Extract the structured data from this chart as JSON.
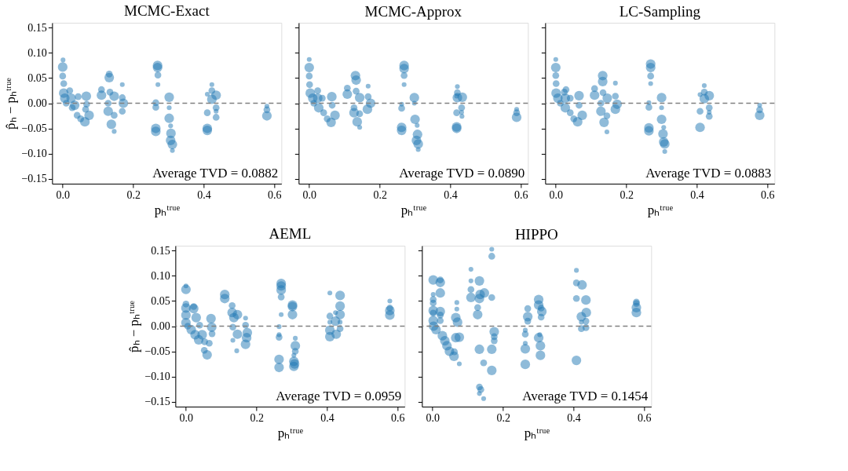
{
  "chart_data": [
    {
      "type": "bubble",
      "title": "MCMC-Exact",
      "xlabel": "pₕᵗʳᵘᵉ",
      "ylabel": "p̂ₕ − pₕᵗʳᵘᵉ",
      "color": "#1f77b4",
      "marker": "circle",
      "grid": false,
      "xlim": [
        -0.03,
        0.62
      ],
      "ylim": [
        -0.16,
        0.16
      ],
      "xticks": [
        {
          "value": 0,
          "label": "0.0"
        },
        {
          "value": 0.2,
          "label": "0.2"
        },
        {
          "value": 0.4,
          "label": "0.4"
        },
        {
          "value": 0.6,
          "label": "0.6"
        }
      ],
      "yticks": [
        {
          "value": -0.15,
          "label": "−0.15"
        },
        {
          "value": -0.1,
          "label": "−0.10"
        },
        {
          "value": -0.05,
          "label": "−0.05"
        },
        {
          "value": 0,
          "label": "0.00"
        },
        {
          "value": 0.05,
          "label": "0.05"
        },
        {
          "value": 0.1,
          "label": "0.10"
        },
        {
          "value": 0.15,
          "label": "0.15"
        }
      ],
      "ref_lines": [
        {
          "axis": "y",
          "value": 0,
          "color": "#808080",
          "line_style": "dashed"
        }
      ],
      "annotations": [
        "Average TVD = 0.0882"
      ],
      "x": [
        0.001,
        0,
        0,
        0.003,
        0.003,
        0.006,
        0.01,
        0.02,
        0.024,
        0.027,
        0.034,
        0.041,
        0.044,
        0.051,
        0.063,
        0.067,
        0.068,
        0.075,
        0.065,
        0.11,
        0.11,
        0.132,
        0.132,
        0.134,
        0.129,
        0.129,
        0.138,
        0.146,
        0.146,
        0.146,
        0.169,
        0.169,
        0.172,
        0.169,
        0.269,
        0.269,
        0.27,
        0.27,
        0.264,
        0.264,
        0.264,
        0.264,
        0.302,
        0.302,
        0.302,
        0.306,
        0.307,
        0.306,
        0.311,
        0.311,
        0.41,
        0.41,
        0.41,
        0.41,
        0.423,
        0.423,
        0.423,
        0.435,
        0.435,
        0.435,
        0.435,
        0.579,
        0.579,
        0.579
      ],
      "values": [
        0.086,
        0.072,
        0.054,
        0.039,
        0.02,
        0.01,
        0,
        0.025,
        0.01,
        -0.009,
        -0.004,
        -0.024,
        0.013,
        -0.031,
        -0.037,
        0.014,
        -0.002,
        -0.024,
        -0.012,
        0.027,
        0.016,
        0.058,
        0.051,
        0.022,
        0,
        -0.016,
        -0.042,
        -0.056,
        0.014,
        -0.024,
        0.037,
        0.011,
        0,
        -0.016,
        0.075,
        0.071,
        0.056,
        0.037,
        0.001,
        -0.008,
        -0.05,
        -0.056,
        0.012,
        -0.009,
        -0.03,
        -0.045,
        -0.06,
        -0.074,
        -0.082,
        -0.094,
        0.018,
        -0.019,
        -0.05,
        -0.054,
        0.037,
        0.025,
        0.008,
        0.016,
        -0.009,
        -0.028,
        -0.016,
        -0.006,
        -0.013,
        -0.025
      ],
      "sizes": [
        0.25,
        1,
        0.5,
        0.5,
        1,
        1,
        0.5,
        0.5,
        1,
        0.5,
        1,
        0.5,
        0.5,
        0.5,
        1,
        1,
        0.5,
        1,
        0.5,
        0.5,
        1,
        0.5,
        1,
        0.5,
        0.5,
        1,
        1,
        0.25,
        1,
        0.5,
        0.25,
        0.5,
        1,
        0.5,
        1,
        1,
        0.5,
        0.25,
        0.5,
        0.5,
        1,
        1,
        1,
        0.25,
        1,
        0.25,
        1,
        1,
        1,
        0.25,
        0.25,
        0.5,
        1,
        1,
        0.25,
        0.5,
        1,
        1,
        0.5,
        0.5,
        0.25,
        0.25,
        0.5,
        1
      ]
    },
    {
      "type": "bubble",
      "title": "MCMC-Approx",
      "xlabel": "pₕᵗʳᵘᵉ",
      "color": "#1f77b4",
      "marker": "circle",
      "grid": false,
      "tick_labels": "x",
      "xlim": [
        -0.03,
        0.62
      ],
      "ylim": [
        -0.16,
        0.16
      ],
      "xticks": [
        {
          "value": 0,
          "label": "0.0"
        },
        {
          "value": 0.2,
          "label": "0.2"
        },
        {
          "value": 0.4,
          "label": "0.4"
        },
        {
          "value": 0.6,
          "label": "0.6"
        }
      ],
      "yticks": [
        {
          "value": -0.15,
          "label": null
        },
        {
          "value": -0.1,
          "label": null
        },
        {
          "value": -0.05,
          "label": null
        },
        {
          "value": 0,
          "label": null
        },
        {
          "value": 0.05,
          "label": null
        },
        {
          "value": 0.1,
          "label": null
        },
        {
          "value": 0.15,
          "label": null
        }
      ],
      "ref_lines": [
        {
          "axis": "y",
          "value": 0,
          "color": "#808080",
          "line_style": "dashed"
        }
      ],
      "annotations": [
        "Average TVD = 0.0890"
      ],
      "x": [
        0,
        0,
        0,
        0.001,
        0.003,
        0.01,
        0.013,
        0.024,
        0.024,
        0.027,
        0.037,
        0.041,
        0.051,
        0.062,
        0.064,
        0.065,
        0.073,
        0.108,
        0.108,
        0.131,
        0.133,
        0.133,
        0.127,
        0.127,
        0.136,
        0.143,
        0.143,
        0.143,
        0.167,
        0.167,
        0.174,
        0.165,
        0.269,
        0.269,
        0.269,
        0.269,
        0.262,
        0.262,
        0.262,
        0.262,
        0.298,
        0.298,
        0.3,
        0.306,
        0.307,
        0.304,
        0.309,
        0.309,
        0.418,
        0.418,
        0.418,
        0.418,
        0.42,
        0.42,
        0.42,
        0.434,
        0.432,
        0.433,
        0.432,
        0.588,
        0.588,
        0.588
      ],
      "values": [
        0.087,
        0.071,
        0.054,
        0.037,
        0.02,
        0.01,
        0,
        0.025,
        0.01,
        -0.009,
        0.01,
        -0.019,
        -0.031,
        -0.038,
        0.013,
        -0.004,
        -0.024,
        0.03,
        0.018,
        0.055,
        0.046,
        0.024,
        -0.009,
        -0.019,
        -0.037,
        -0.048,
        0.011,
        -0.021,
        0.034,
        0.013,
        0,
        -0.012,
        0.075,
        0.069,
        0.055,
        0.037,
        -0.002,
        -0.01,
        -0.048,
        -0.054,
        0.011,
        0,
        -0.032,
        -0.044,
        -0.062,
        -0.074,
        -0.081,
        -0.092,
        0.014,
        -0.019,
        -0.047,
        -0.05,
        0.033,
        0.021,
        0.011,
        0.012,
        -0.009,
        -0.026,
        -0.018,
        -0.012,
        -0.019,
        -0.028
      ],
      "sizes": [
        0.25,
        1,
        0.5,
        0.5,
        1,
        1,
        0.5,
        0.5,
        1,
        1,
        0.5,
        0.5,
        0.5,
        1,
        1,
        0.5,
        1,
        0.5,
        1,
        1,
        1,
        0.5,
        0.5,
        1,
        1,
        0.25,
        1,
        0.5,
        0.25,
        0.5,
        1,
        1,
        1,
        1,
        0.5,
        0.25,
        0.25,
        0.5,
        1,
        1,
        1,
        0.25,
        1,
        0.25,
        1,
        1,
        1,
        0.25,
        0.25,
        0.5,
        1,
        1,
        0.25,
        0.5,
        1,
        1,
        0.5,
        0.25,
        0.25,
        0.25,
        0.5,
        1
      ]
    },
    {
      "type": "bubble",
      "title": "LC-Sampling",
      "xlabel": "pₕᵗʳᵘᵉ",
      "color": "#1f77b4",
      "marker": "circle",
      "grid": false,
      "tick_labels": "x",
      "xlim": [
        -0.03,
        0.62
      ],
      "ylim": [
        -0.16,
        0.16
      ],
      "xticks": [
        {
          "value": 0,
          "label": "0.0"
        },
        {
          "value": 0.2,
          "label": "0.2"
        },
        {
          "value": 0.4,
          "label": "0.4"
        },
        {
          "value": 0.6,
          "label": "0.6"
        }
      ],
      "yticks": [
        {
          "value": -0.15,
          "label": null
        },
        {
          "value": -0.1,
          "label": null
        },
        {
          "value": -0.05,
          "label": null
        },
        {
          "value": 0,
          "label": null
        },
        {
          "value": 0.05,
          "label": null
        },
        {
          "value": 0.1,
          "label": null
        },
        {
          "value": 0.15,
          "label": null
        }
      ],
      "ref_lines": [
        {
          "axis": "y",
          "value": 0,
          "color": "#808080",
          "line_style": "dashed"
        }
      ],
      "annotations": [
        "Average TVD = 0.0883"
      ],
      "x": [
        0,
        0,
        0,
        0.001,
        0.001,
        0.006,
        0.013,
        0.024,
        0.027,
        0.027,
        0.041,
        0.041,
        0.051,
        0.062,
        0.066,
        0.066,
        0.075,
        0.029,
        0.11,
        0.11,
        0.133,
        0.133,
        0.134,
        0.128,
        0.128,
        0.137,
        0.145,
        0.146,
        0.145,
        0.169,
        0.169,
        0.174,
        0.169,
        0.269,
        0.269,
        0.269,
        0.269,
        0.264,
        0.264,
        0.264,
        0.264,
        0.3,
        0.3,
        0.3,
        0.306,
        0.304,
        0.306,
        0.309,
        0.309,
        0.409,
        0.409,
        0.409,
        0.421,
        0.421,
        0.421,
        0.435,
        0.435,
        0.435,
        0.435,
        0.578,
        0.578,
        0.578
      ],
      "values": [
        0.087,
        0.071,
        0.055,
        0.039,
        0.02,
        0.01,
        0,
        0.022,
        0.01,
        -0.009,
        0.01,
        -0.019,
        -0.031,
        -0.037,
        0.015,
        -0.004,
        -0.024,
        0.027,
        0.029,
        0.016,
        0.055,
        0.043,
        0.021,
        0,
        -0.016,
        -0.038,
        -0.057,
        0.01,
        -0.025,
        0.04,
        0.014,
        -0.002,
        -0.012,
        0.078,
        0.071,
        0.054,
        0.039,
        0.001,
        -0.008,
        -0.049,
        -0.055,
        0.011,
        -0.009,
        -0.032,
        -0.048,
        -0.061,
        -0.077,
        -0.081,
        -0.096,
        0.017,
        -0.016,
        -0.048,
        0.035,
        0.022,
        0.009,
        0.015,
        -0.009,
        -0.026,
        -0.018,
        -0.004,
        -0.013,
        -0.024
      ],
      "sizes": [
        0.25,
        1,
        0.5,
        0.5,
        1,
        1,
        0.5,
        0.5,
        1,
        1,
        0.5,
        0.5,
        0.5,
        1,
        1,
        0.5,
        1,
        0.5,
        0.5,
        1,
        1,
        1,
        0.5,
        0.5,
        1,
        1,
        0.25,
        1,
        0.5,
        0.25,
        0.5,
        1,
        1,
        1,
        1,
        0.5,
        0.25,
        0.25,
        0.5,
        1,
        1,
        1,
        0.25,
        1,
        0.25,
        1,
        1,
        1,
        0.25,
        0.25,
        0.5,
        1,
        0.25,
        0.5,
        1,
        1,
        0.5,
        0.5,
        0.25,
        0.25,
        0.5,
        1
      ]
    },
    {
      "type": "bubble",
      "title": "AEML",
      "xlabel": "pₕᵗʳᵘᵉ",
      "ylabel": "p̂ₕ − pₕᵗʳᵘᵉ",
      "color": "#1f77b4",
      "marker": "circle",
      "grid": false,
      "xlim": [
        -0.03,
        0.62
      ],
      "ylim": [
        -0.16,
        0.16
      ],
      "xticks": [
        {
          "value": 0,
          "label": "0.0"
        },
        {
          "value": 0.2,
          "label": "0.2"
        },
        {
          "value": 0.4,
          "label": "0.4"
        },
        {
          "value": 0.6,
          "label": "0.6"
        }
      ],
      "yticks": [
        {
          "value": -0.15,
          "label": "−0.15"
        },
        {
          "value": -0.1,
          "label": "−0.10"
        },
        {
          "value": -0.05,
          "label": "−0.05"
        },
        {
          "value": 0,
          "label": "0.00"
        },
        {
          "value": 0.05,
          "label": "0.05"
        },
        {
          "value": 0.1,
          "label": "0.10"
        },
        {
          "value": 0.15,
          "label": "0.15"
        }
      ],
      "ref_lines": [
        {
          "axis": "y",
          "value": 0,
          "color": "#808080",
          "line_style": "dashed"
        }
      ],
      "annotations": [
        "Average TVD = 0.0959"
      ],
      "x": [
        0,
        0,
        0,
        0,
        0,
        0,
        0.005,
        0.022,
        0.022,
        0.015,
        0.026,
        0.029,
        0.036,
        0.039,
        0.046,
        0.052,
        0.053,
        0.06,
        0.066,
        0.071,
        0.073,
        0.074,
        0.11,
        0.11,
        0.131,
        0.131,
        0.136,
        0.146,
        0.133,
        0.133,
        0.146,
        0.144,
        0.169,
        0.169,
        0.174,
        0.172,
        0.169,
        0.27,
        0.27,
        0.27,
        0.27,
        0.27,
        0.264,
        0.264,
        0.264,
        0.264,
        0.264,
        0.302,
        0.302,
        0.302,
        0.31,
        0.31,
        0.31,
        0.306,
        0.306,
        0.308,
        0.306,
        0.408,
        0.408,
        0.408,
        0.408,
        0.408,
        0.424,
        0.424,
        0.426,
        0.437,
        0.437,
        0.437,
        0.437,
        0.437,
        0.578,
        0.578,
        0.578,
        0.578
      ],
      "values": [
        0.08,
        0.073,
        0.044,
        0.036,
        0.022,
        0.007,
        0,
        0.039,
        0.035,
        -0.007,
        -0.017,
        0.017,
        -0.027,
        0.002,
        -0.017,
        -0.048,
        -0.031,
        -0.057,
        -0.034,
        0.015,
        -0.002,
        -0.015,
        0.063,
        0.055,
        0.041,
        0.027,
        0.017,
        0.023,
        -0.002,
        -0.028,
        -0.016,
        -0.049,
        0.016,
        0.002,
        -0.013,
        -0.023,
        -0.036,
        0.085,
        0.08,
        0.072,
        0.058,
        0.023,
        -0.001,
        -0.017,
        -0.022,
        -0.066,
        -0.082,
        0.042,
        0.039,
        0.023,
        -0.024,
        -0.039,
        -0.05,
        -0.058,
        -0.07,
        -0.075,
        -0.08,
        0.066,
        0.02,
        0.008,
        -0.008,
        -0.021,
        0.027,
        0.01,
        -0.016,
        0.061,
        0.04,
        0.023,
        0.008,
        -0.005,
        0.05,
        0.036,
        0.031,
        0.022
      ],
      "sizes": [
        0.25,
        1,
        0.5,
        1,
        1,
        1,
        0.5,
        0.5,
        1,
        1,
        1,
        1,
        1,
        0.5,
        1,
        0.5,
        0.5,
        1,
        0.5,
        1,
        1,
        0.5,
        1,
        1,
        0.5,
        1,
        1,
        1,
        0.5,
        0.25,
        1,
        0.25,
        0.25,
        0.5,
        1,
        1,
        1,
        1,
        1,
        1,
        0.5,
        0.25,
        0.25,
        0.25,
        0.5,
        1,
        1,
        1,
        1,
        1,
        0.25,
        1,
        0.5,
        0.25,
        1,
        1,
        1,
        0.25,
        0.5,
        0.25,
        1,
        1,
        0.25,
        1,
        1,
        1,
        1,
        1,
        0.25,
        0.5,
        0.25,
        0.5,
        1,
        1
      ]
    },
    {
      "type": "bubble",
      "title": "HIPPO",
      "xlabel": "pₕᵗʳᵘᵉ",
      "color": "#1f77b4",
      "marker": "circle",
      "grid": false,
      "tick_labels": "x",
      "xlim": [
        -0.03,
        0.62
      ],
      "ylim": [
        -0.16,
        0.16
      ],
      "xticks": [
        {
          "value": 0,
          "label": "0.0"
        },
        {
          "value": 0.2,
          "label": "0.2"
        },
        {
          "value": 0.4,
          "label": "0.4"
        },
        {
          "value": 0.6,
          "label": "0.6"
        }
      ],
      "yticks": [
        {
          "value": -0.15,
          "label": null
        },
        {
          "value": -0.1,
          "label": null
        },
        {
          "value": -0.05,
          "label": null
        },
        {
          "value": 0,
          "label": null
        },
        {
          "value": 0.05,
          "label": null
        },
        {
          "value": 0.1,
          "label": null
        },
        {
          "value": 0.15,
          "label": null
        }
      ],
      "ref_lines": [
        {
          "axis": "y",
          "value": 0,
          "color": "#808080",
          "line_style": "dashed"
        }
      ],
      "annotations": [
        "Average TVD = 0.1454"
      ],
      "x": [
        0.002,
        0.002,
        0.002,
        0.002,
        0.002,
        0.002,
        0.002,
        0.003,
        0.01,
        0.022,
        0.022,
        0.022,
        0.022,
        0.022,
        0.022,
        0.028,
        0.035,
        0.041,
        0.048,
        0.061,
        0.069,
        0.069,
        0.066,
        0.071,
        0.066,
        0.076,
        0.076,
        0.062,
        0.109,
        0.109,
        0.109,
        0.109,
        0.133,
        0.135,
        0.133,
        0.147,
        0.128,
        0.128,
        0.133,
        0.145,
        0.133,
        0.137,
        0.133,
        0.145,
        0.168,
        0.168,
        0.168,
        0.175,
        0.175,
        0.175,
        0.168,
        0.168,
        0.27,
        0.27,
        0.27,
        0.263,
        0.263,
        0.263,
        0.263,
        0.263,
        0.301,
        0.301,
        0.308,
        0.31,
        0.308,
        0.304,
        0.301,
        0.306,
        0.306,
        0.408,
        0.408,
        0.408,
        0.408,
        0.424,
        0.435,
        0.422,
        0.422,
        0.422,
        0.436,
        0.435,
        0.435,
        0.578,
        0.578,
        0.578,
        0.578
      ],
      "values": [
        0.092,
        0.063,
        0.053,
        0.046,
        0.031,
        0.026,
        0.011,
        0,
        -0.007,
        0.092,
        0.087,
        0.066,
        0.029,
        0.022,
        0.011,
        -0.019,
        -0.029,
        -0.039,
        -0.05,
        -0.06,
        0.047,
        0.034,
        0.017,
        0.008,
        -0.023,
        -0.022,
        -0.075,
        -0.051,
        0.113,
        0.09,
        0.073,
        0.057,
        0.09,
        0.063,
        0.055,
        0.066,
        0.037,
        0.023,
        -0.046,
        -0.073,
        -0.121,
        -0.126,
        -0.134,
        -0.144,
        0.153,
        0.139,
        0.057,
        -0.011,
        -0.021,
        -0.029,
        -0.046,
        -0.088,
        0.035,
        0.019,
        0.01,
        -0.008,
        -0.016,
        -0.034,
        -0.045,
        -0.076,
        0.053,
        0.042,
        0.036,
        0.029,
        0.018,
        -0.017,
        -0.023,
        -0.039,
        -0.058,
        0.111,
        0.086,
        0.055,
        -0.068,
        0.082,
        0.052,
        0.019,
        0.008,
        -0.005,
        0.027,
        0.01,
        -0.003,
        0.048,
        0.045,
        0.037,
        0.027
      ],
      "sizes": [
        1,
        0.25,
        0.5,
        0.5,
        1,
        0.5,
        1,
        1,
        1,
        0.5,
        1,
        1,
        1,
        0.5,
        0.5,
        1,
        1,
        1,
        1,
        1,
        0.25,
        0.25,
        1,
        1,
        1,
        1,
        0.25,
        0.5,
        0.25,
        0.25,
        0.5,
        1,
        1,
        1,
        1,
        1,
        0.5,
        1,
        1,
        0.5,
        0.5,
        0.5,
        0.25,
        0.25,
        0.25,
        0.5,
        0.5,
        1,
        0.5,
        0.5,
        1,
        1,
        0.5,
        1,
        0.5,
        0.25,
        0.5,
        0.25,
        1,
        1,
        1,
        1,
        0.5,
        1,
        0.5,
        0.25,
        1,
        1,
        1,
        0.25,
        0.5,
        0.5,
        1,
        1,
        1,
        1,
        0.25,
        0.5,
        1,
        0.5,
        0.5,
        0.5,
        0.5,
        1,
        1
      ]
    }
  ]
}
